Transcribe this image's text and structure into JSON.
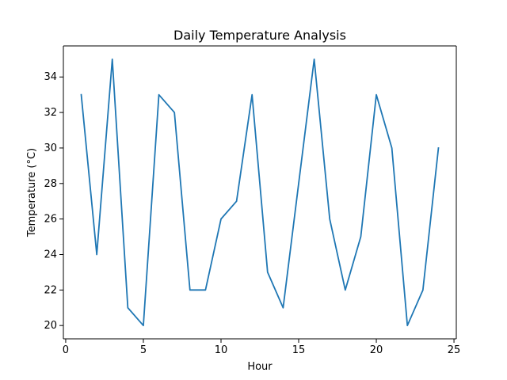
{
  "chart_data": {
    "type": "line",
    "title": "Daily Temperature Analysis",
    "xlabel": "Hour",
    "ylabel": "Temperature (°C)",
    "xlim": [
      -0.15,
      25.15
    ],
    "ylim": [
      19.25,
      35.75
    ],
    "xticks": [
      0,
      5,
      10,
      15,
      20,
      25
    ],
    "xtick_labels": [
      "0",
      "5",
      "10",
      "15",
      "20",
      "25"
    ],
    "yticks": [
      20,
      22,
      24,
      26,
      28,
      30,
      32,
      34
    ],
    "ytick_labels": [
      "20",
      "22",
      "24",
      "26",
      "28",
      "30",
      "32",
      "34"
    ],
    "grid": false,
    "legend": "none",
    "series": [
      {
        "color": "#1f77b4",
        "x": [
          1,
          2,
          3,
          4,
          5,
          6,
          7,
          8,
          9,
          10,
          11,
          12,
          13,
          14,
          15,
          16,
          17,
          18,
          19,
          20,
          21,
          22,
          23,
          24
        ],
        "y": [
          33,
          24,
          35,
          21,
          20,
          33,
          32,
          22,
          22,
          26,
          27,
          33,
          23,
          21,
          28,
          35,
          26,
          22,
          25,
          33,
          30,
          20,
          22,
          30
        ]
      }
    ]
  }
}
